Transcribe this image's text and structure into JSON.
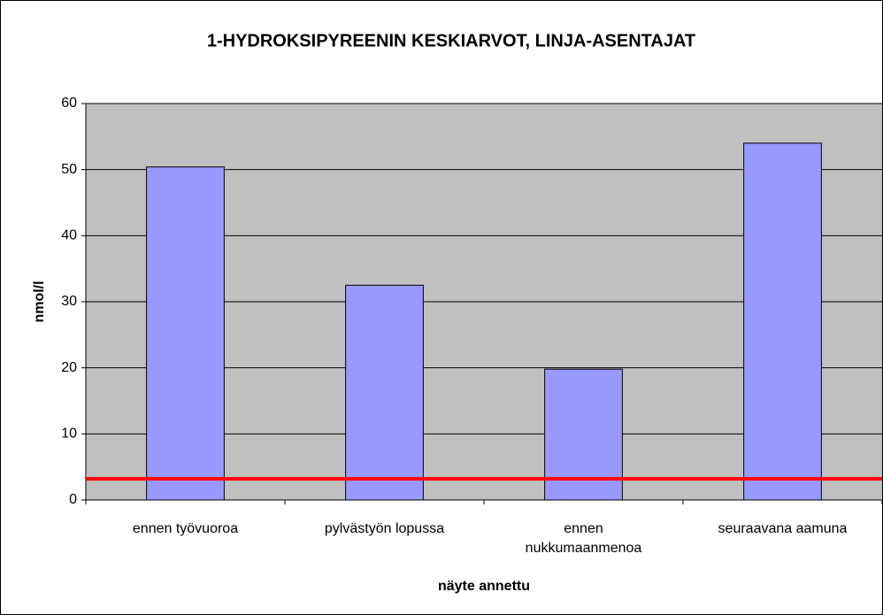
{
  "chart_data": {
    "type": "bar",
    "title": "1-HYDROKSIPYREENIN KESKIARVOT, LINJA-ASENTAJAT",
    "x_label": "näyte annettu",
    "y_label": "nmol/l",
    "categories": [
      "ennen työvuoroa",
      "pylvästyön lopussa",
      "ennen nukkumaanmenoa",
      "seuraavana aamuna"
    ],
    "values": [
      50.4,
      32.5,
      19.8,
      54
    ],
    "color": "#9999ff",
    "ylim": [
      0,
      60
    ],
    "yticks": [
      0,
      10,
      20,
      30,
      40,
      50,
      60
    ],
    "grid": true,
    "reference_line": {
      "value": 3.2,
      "color": "#ff0000"
    }
  }
}
